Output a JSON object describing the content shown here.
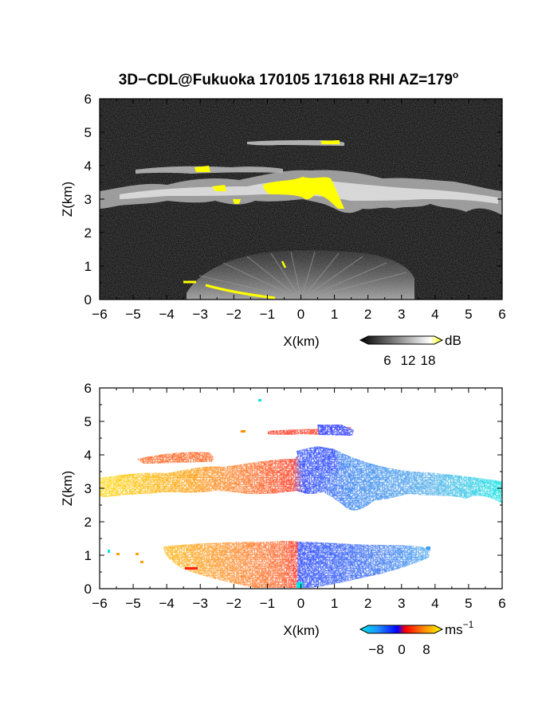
{
  "title": "3D−CDL@Fukuoka 170105 171618 RHI AZ=179",
  "title_sup": "o",
  "chart_data": [
    {
      "type": "heatmap",
      "quantity": "reflectivity",
      "xlabel": "X(km)",
      "ylabel": "Z(km)",
      "xlim": [
        -6,
        6
      ],
      "ylim": [
        0,
        6
      ],
      "xticks": [
        "−6",
        "−5",
        "−4",
        "−3",
        "−2",
        "−1",
        "0",
        "1",
        "2",
        "3",
        "4",
        "5",
        "6"
      ],
      "yticks": [
        "0",
        "1",
        "2",
        "3",
        "4",
        "5",
        "6"
      ],
      "colorbar": {
        "unit": "dB",
        "ticks": [
          "6",
          "12",
          "18"
        ],
        "range": [
          0,
          21
        ],
        "colors": [
          "#000000",
          "#ffffff",
          "#ffff00"
        ]
      },
      "features": [
        {
          "name": "cloud layer",
          "x": [
            -6,
            6
          ],
          "z": [
            2.6,
            3.6
          ]
        },
        {
          "name": "thin layer",
          "x": [
            -5,
            -0.5
          ],
          "z": [
            3.8,
            4.0
          ]
        },
        {
          "name": "thin layer",
          "x": [
            -1.6,
            1.3
          ],
          "z": [
            4.6,
            4.8
          ]
        },
        {
          "name": "near-ground fan",
          "x": [
            -3.3,
            3.7
          ],
          "z": [
            0,
            1.3
          ]
        }
      ]
    },
    {
      "type": "heatmap",
      "quantity": "radial velocity",
      "xlabel": "X(km)",
      "ylabel": "Z(km)",
      "xlim": [
        -6,
        6
      ],
      "ylim": [
        0,
        6
      ],
      "xticks": [
        "−6",
        "−5",
        "−4",
        "−3",
        "−2",
        "−1",
        "0",
        "1",
        "2",
        "3",
        "4",
        "5",
        "6"
      ],
      "yticks": [
        "0",
        "1",
        "2",
        "3",
        "4",
        "5",
        "6"
      ],
      "colorbar": {
        "unit": "ms",
        "unit_sup": "−1",
        "ticks": [
          "−8",
          "0",
          "8"
        ],
        "range": [
          -10,
          10
        ]
      },
      "features": [
        {
          "name": "cloud layer velocity",
          "x": [
            -6,
            6
          ],
          "v": [
            8,
            -8
          ]
        },
        {
          "name": "low-level flow",
          "x": [
            -3.5,
            3.8
          ],
          "v": [
            4,
            -6
          ]
        }
      ]
    }
  ]
}
